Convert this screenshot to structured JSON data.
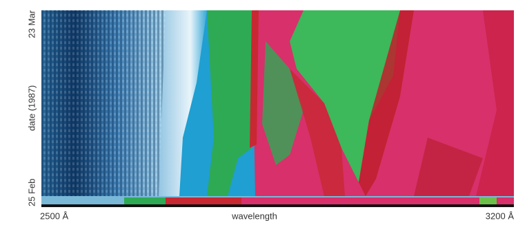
{
  "chart_data": {
    "type": "image",
    "xlabel": "wavelength",
    "ylabel": "date (1987)",
    "xlim": [
      2500,
      3200
    ],
    "xticks": [
      {
        "value": 2500,
        "label": "2500 Å"
      },
      {
        "value": 3200,
        "label": "3200 Å"
      }
    ],
    "y": [
      "25 Feb",
      "23 Mar"
    ]
  }
}
